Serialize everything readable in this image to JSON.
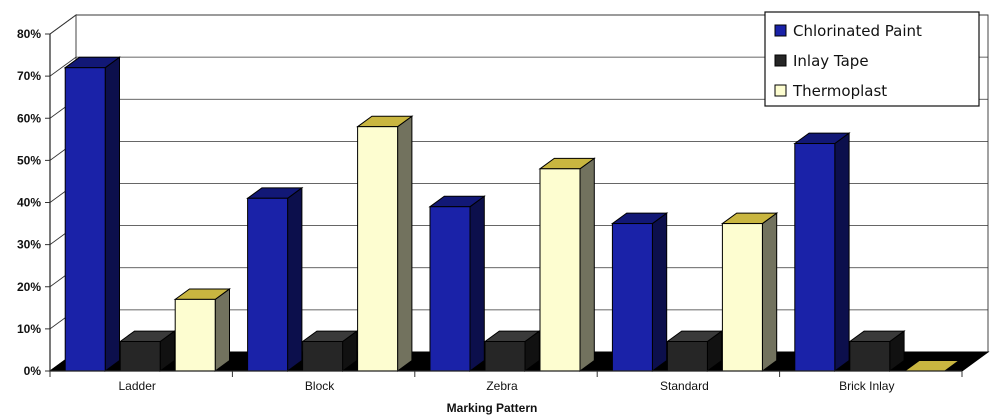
{
  "chart_data": {
    "type": "bar",
    "title": "",
    "xlabel": "Marking Pattern",
    "ylabel": "",
    "ylim": [
      0,
      80
    ],
    "yticks": [
      "0%",
      "10%",
      "20%",
      "30%",
      "40%",
      "50%",
      "60%",
      "70%",
      "80%"
    ],
    "categories": [
      "Ladder",
      "Block",
      "Zebra",
      "Standard",
      "Brick Inlay"
    ],
    "series": [
      {
        "name": "Chlorinated Paint",
        "color": "#1a22a8",
        "values": [
          72,
          41,
          39,
          35,
          54
        ]
      },
      {
        "name": "Inlay Tape",
        "color": "#262626",
        "values": [
          0,
          0,
          0,
          0,
          0
        ]
      },
      {
        "name": "Thermoplast",
        "color": "#fdfdd0",
        "values": [
          17,
          58,
          48,
          35,
          0
        ]
      }
    ],
    "grid": true,
    "legend_position": "top-right",
    "style": "3d-clustered-column"
  }
}
